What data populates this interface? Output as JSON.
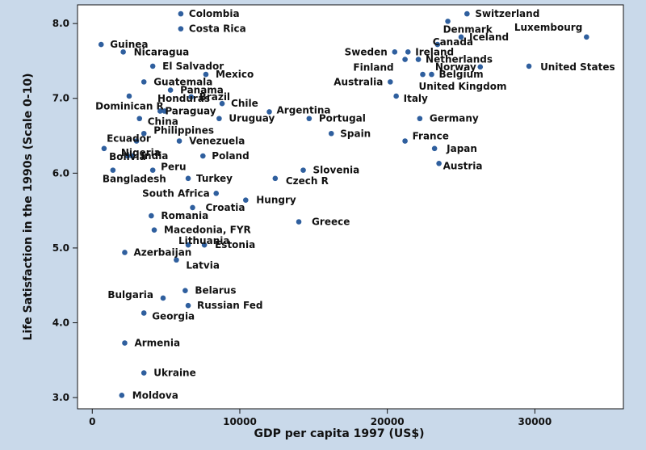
{
  "chart_data": {
    "type": "scatter",
    "title": "",
    "xlabel": "GDP per capita 1997 (US$)",
    "ylabel": "Life Satisfaction in the 1990s (Scale 0-10)",
    "xlim": [
      -1000,
      36000
    ],
    "ylim": [
      2.85,
      8.25
    ],
    "xticks": [
      0,
      10000,
      20000,
      30000
    ],
    "yticks": [
      3.0,
      4.0,
      5.0,
      6.0,
      7.0,
      8.0
    ],
    "xtick_labels": [
      "0",
      "10000",
      "20000",
      "30000"
    ],
    "ytick_labels": [
      "3.0",
      "4.0",
      "5.0",
      "6.0",
      "7.0",
      "8.0"
    ],
    "colors": {
      "point": "#2f5f9e",
      "plot_background": "#ffffff",
      "page_background": "#c9d9ea"
    },
    "points": [
      {
        "label": "Colombia",
        "x": 6000,
        "y": 8.13
      },
      {
        "label": "Costa Rica",
        "x": 6000,
        "y": 7.93
      },
      {
        "label": "Switzerland",
        "x": 25400,
        "y": 8.13
      },
      {
        "label": "Denmark",
        "x": 24100,
        "y": 8.03
      },
      {
        "label": "Iceland",
        "x": 25000,
        "y": 7.82
      },
      {
        "label": "Luxembourg",
        "x": 33500,
        "y": 7.82
      },
      {
        "label": "Canada",
        "x": 23400,
        "y": 7.72
      },
      {
        "label": "Sweden",
        "x": 20500,
        "y": 7.62
      },
      {
        "label": "Ireland",
        "x": 21400,
        "y": 7.62
      },
      {
        "label": "Finland",
        "x": 21200,
        "y": 7.52
      },
      {
        "label": "Netherlands",
        "x": 22100,
        "y": 7.52
      },
      {
        "label": "Norway",
        "x": 26300,
        "y": 7.42
      },
      {
        "label": "United States",
        "x": 29600,
        "y": 7.43
      },
      {
        "label": "Belgium",
        "x": 23000,
        "y": 7.32
      },
      {
        "label": "Australia",
        "x": 20200,
        "y": 7.22
      },
      {
        "label": "United Kingdom",
        "x": 22400,
        "y": 7.32
      },
      {
        "label": "Italy",
        "x": 20600,
        "y": 7.03
      },
      {
        "label": "Germany",
        "x": 22200,
        "y": 6.73
      },
      {
        "label": "France",
        "x": 21200,
        "y": 6.43
      },
      {
        "label": "Japan",
        "x": 23200,
        "y": 6.33
      },
      {
        "label": "Austria",
        "x": 23500,
        "y": 6.13
      },
      {
        "label": "Guinea",
        "x": 600,
        "y": 7.72
      },
      {
        "label": "Nicaragua",
        "x": 2100,
        "y": 7.62
      },
      {
        "label": "El Salvador",
        "x": 4100,
        "y": 7.43
      },
      {
        "label": "Mexico",
        "x": 7700,
        "y": 7.32
      },
      {
        "label": "Guatemala",
        "x": 3500,
        "y": 7.22
      },
      {
        "label": "Panama",
        "x": 5300,
        "y": 7.11
      },
      {
        "label": "Brazil",
        "x": 6700,
        "y": 7.02
      },
      {
        "label": "Honduras",
        "x": 2500,
        "y": 7.03
      },
      {
        "label": "Chile",
        "x": 8800,
        "y": 6.93
      },
      {
        "label": "Dominican R",
        "x": 4900,
        "y": 6.83
      },
      {
        "label": "Paraguay",
        "x": 4600,
        "y": 6.83
      },
      {
        "label": "China",
        "x": 3200,
        "y": 6.73
      },
      {
        "label": "Uruguay",
        "x": 8600,
        "y": 6.73
      },
      {
        "label": "Argentina",
        "x": 12000,
        "y": 6.82
      },
      {
        "label": "Portugal",
        "x": 14700,
        "y": 6.73
      },
      {
        "label": "Philippines",
        "x": 3500,
        "y": 6.53
      },
      {
        "label": "Spain",
        "x": 16200,
        "y": 6.53
      },
      {
        "label": "Ecuador",
        "x": 3000,
        "y": 6.43
      },
      {
        "label": "Venezuela",
        "x": 5900,
        "y": 6.43
      },
      {
        "label": "Nigeria",
        "x": 800,
        "y": 6.33
      },
      {
        "label": "Bolivia",
        "x": 2400,
        "y": 6.23
      },
      {
        "label": "India",
        "x": 2700,
        "y": 6.23
      },
      {
        "label": "Poland",
        "x": 7500,
        "y": 6.23
      },
      {
        "label": "Bangladesh",
        "x": 1400,
        "y": 6.04
      },
      {
        "label": "Peru",
        "x": 4100,
        "y": 6.04
      },
      {
        "label": "Slovenia",
        "x": 14300,
        "y": 6.04
      },
      {
        "label": "Turkey",
        "x": 6500,
        "y": 5.93
      },
      {
        "label": "Czech R",
        "x": 12400,
        "y": 5.93
      },
      {
        "label": "South Africa",
        "x": 8400,
        "y": 5.73
      },
      {
        "label": "Hungry",
        "x": 10400,
        "y": 5.64
      },
      {
        "label": "Croatia",
        "x": 6800,
        "y": 5.54
      },
      {
        "label": "Romania",
        "x": 4000,
        "y": 5.43
      },
      {
        "label": "Greece",
        "x": 14000,
        "y": 5.35
      },
      {
        "label": "Macedonia, FYR",
        "x": 4200,
        "y": 5.24
      },
      {
        "label": "Lithuania",
        "x": 6500,
        "y": 5.04
      },
      {
        "label": "Estonia",
        "x": 7600,
        "y": 5.04
      },
      {
        "label": "Azerbaijan",
        "x": 2200,
        "y": 4.94
      },
      {
        "label": "Latvia",
        "x": 5700,
        "y": 4.84
      },
      {
        "label": "Belarus",
        "x": 6300,
        "y": 4.43
      },
      {
        "label": "Bulgaria",
        "x": 4800,
        "y": 4.33
      },
      {
        "label": "Russian Fed",
        "x": 6500,
        "y": 4.23
      },
      {
        "label": "Georgia",
        "x": 3500,
        "y": 4.13
      },
      {
        "label": "Armenia",
        "x": 2200,
        "y": 3.73
      },
      {
        "label": "Ukraine",
        "x": 3500,
        "y": 3.33
      },
      {
        "label": "Moldova",
        "x": 2000,
        "y": 3.03
      }
    ]
  }
}
